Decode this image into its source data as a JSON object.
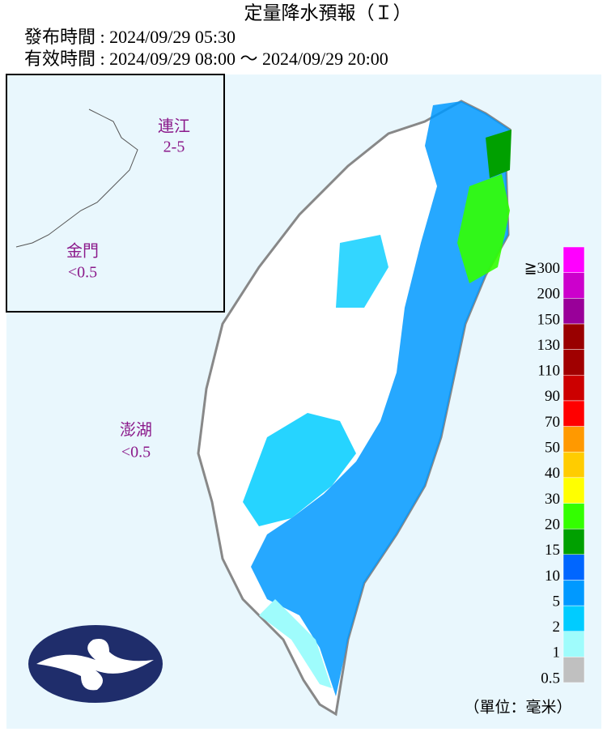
{
  "header": {
    "title": "定量降水預報（Ｉ）",
    "issued": "發布時間 : 2024/09/29 05:30",
    "valid": "有效時間 : 2024/09/29 08:00 ～ 2024/09/29 20:00"
  },
  "map_labels": {
    "lienchiang": "連江",
    "lienchiang_value": "2-5",
    "kinmen": "金門",
    "kinmen_value": "<0.5",
    "penghu": "澎湖",
    "penghu_value": "<0.5"
  },
  "legend": {
    "unit": "（單位：毫米）",
    "items": [
      {
        "label": "0.5",
        "color": "#c0c0c0"
      },
      {
        "label": "1",
        "color": "#9ffcfc"
      },
      {
        "label": "2",
        "color": "#00ccff"
      },
      {
        "label": "5",
        "color": "#0099ff"
      },
      {
        "label": "10",
        "color": "#0066ff"
      },
      {
        "label": "15",
        "color": "#00a000"
      },
      {
        "label": "20",
        "color": "#33ff00"
      },
      {
        "label": "30",
        "color": "#ffff00"
      },
      {
        "label": "40",
        "color": "#ffcc00"
      },
      {
        "label": "50",
        "color": "#ff9900"
      },
      {
        "label": "70",
        "color": "#ff0000"
      },
      {
        "label": "90",
        "color": "#cc0000"
      },
      {
        "label": "110",
        "color": "#a00000"
      },
      {
        "label": "130",
        "color": "#990000"
      },
      {
        "label": "150",
        "color": "#990099"
      },
      {
        "label": "200",
        "color": "#cc00cc"
      },
      {
        "label": "≧300",
        "color": "#ff00ff"
      }
    ]
  }
}
